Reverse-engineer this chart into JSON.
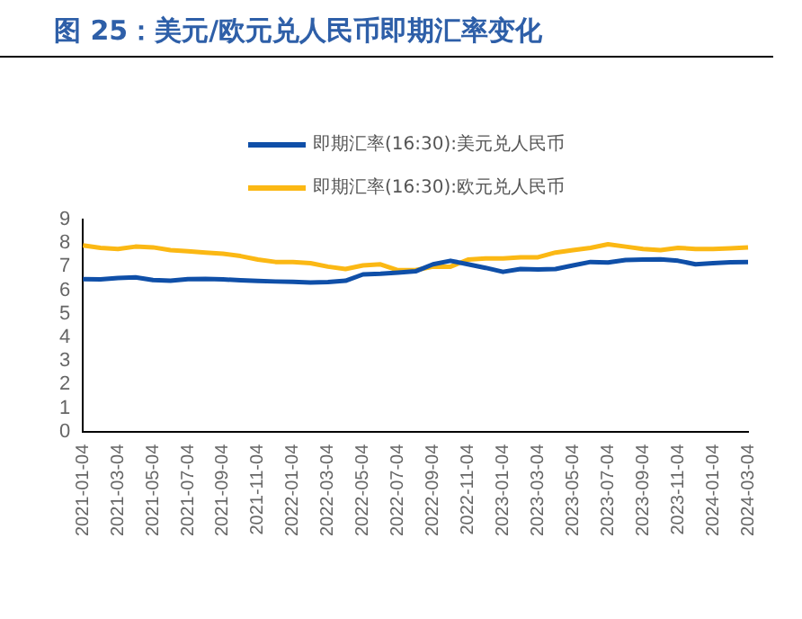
{
  "chart_data": {
    "type": "line",
    "title": "图 25：美元/欧元兑人民币即期汇率变化",
    "categories": [
      "2021-01-04",
      null,
      "2021-03-04",
      null,
      "2021-05-04",
      null,
      "2021-07-04",
      null,
      "2021-09-04",
      null,
      "2021-11-04",
      null,
      "2022-01-04",
      null,
      "2022-03-04",
      null,
      "2022-05-04",
      null,
      "2022-07-04",
      null,
      "2022-09-04",
      null,
      "2022-11-04",
      null,
      "2023-01-04",
      null,
      "2023-03-04",
      null,
      "2023-05-04",
      null,
      "2023-07-04",
      null,
      "2023-09-04",
      null,
      "2023-11-04",
      null,
      "2024-01-04",
      null,
      "2024-03-04"
    ],
    "series": [
      {
        "name": "即期汇率(16:30):美元兑人民币",
        "color": "#0f4fa8",
        "values": [
          6.47,
          6.46,
          6.52,
          6.55,
          6.43,
          6.4,
          6.47,
          6.48,
          6.46,
          6.42,
          6.39,
          6.37,
          6.36,
          6.33,
          6.35,
          6.4,
          6.67,
          6.7,
          6.75,
          6.8,
          7.1,
          7.25,
          7.1,
          6.95,
          6.78,
          6.9,
          6.88,
          6.9,
          7.05,
          7.2,
          7.18,
          7.28,
          7.3,
          7.31,
          7.25,
          7.1,
          7.15,
          7.19,
          7.2
        ]
      },
      {
        "name": "即期汇率(16:30):欧元兑人民币",
        "color": "#fbb814",
        "values": [
          7.9,
          7.8,
          7.75,
          7.85,
          7.82,
          7.7,
          7.65,
          7.6,
          7.55,
          7.45,
          7.3,
          7.2,
          7.2,
          7.15,
          7.0,
          6.9,
          7.05,
          7.1,
          6.85,
          6.85,
          7.0,
          7.0,
          7.3,
          7.35,
          7.35,
          7.4,
          7.4,
          7.6,
          7.7,
          7.8,
          7.95,
          7.85,
          7.75,
          7.7,
          7.8,
          7.75,
          7.75,
          7.78,
          7.82
        ]
      }
    ],
    "ylim": [
      0,
      9
    ],
    "yticks": [
      0,
      1,
      2,
      3,
      4,
      5,
      6,
      7,
      8,
      9
    ],
    "grid": false,
    "legend": "top",
    "marker": "none",
    "line_style": "solid"
  }
}
